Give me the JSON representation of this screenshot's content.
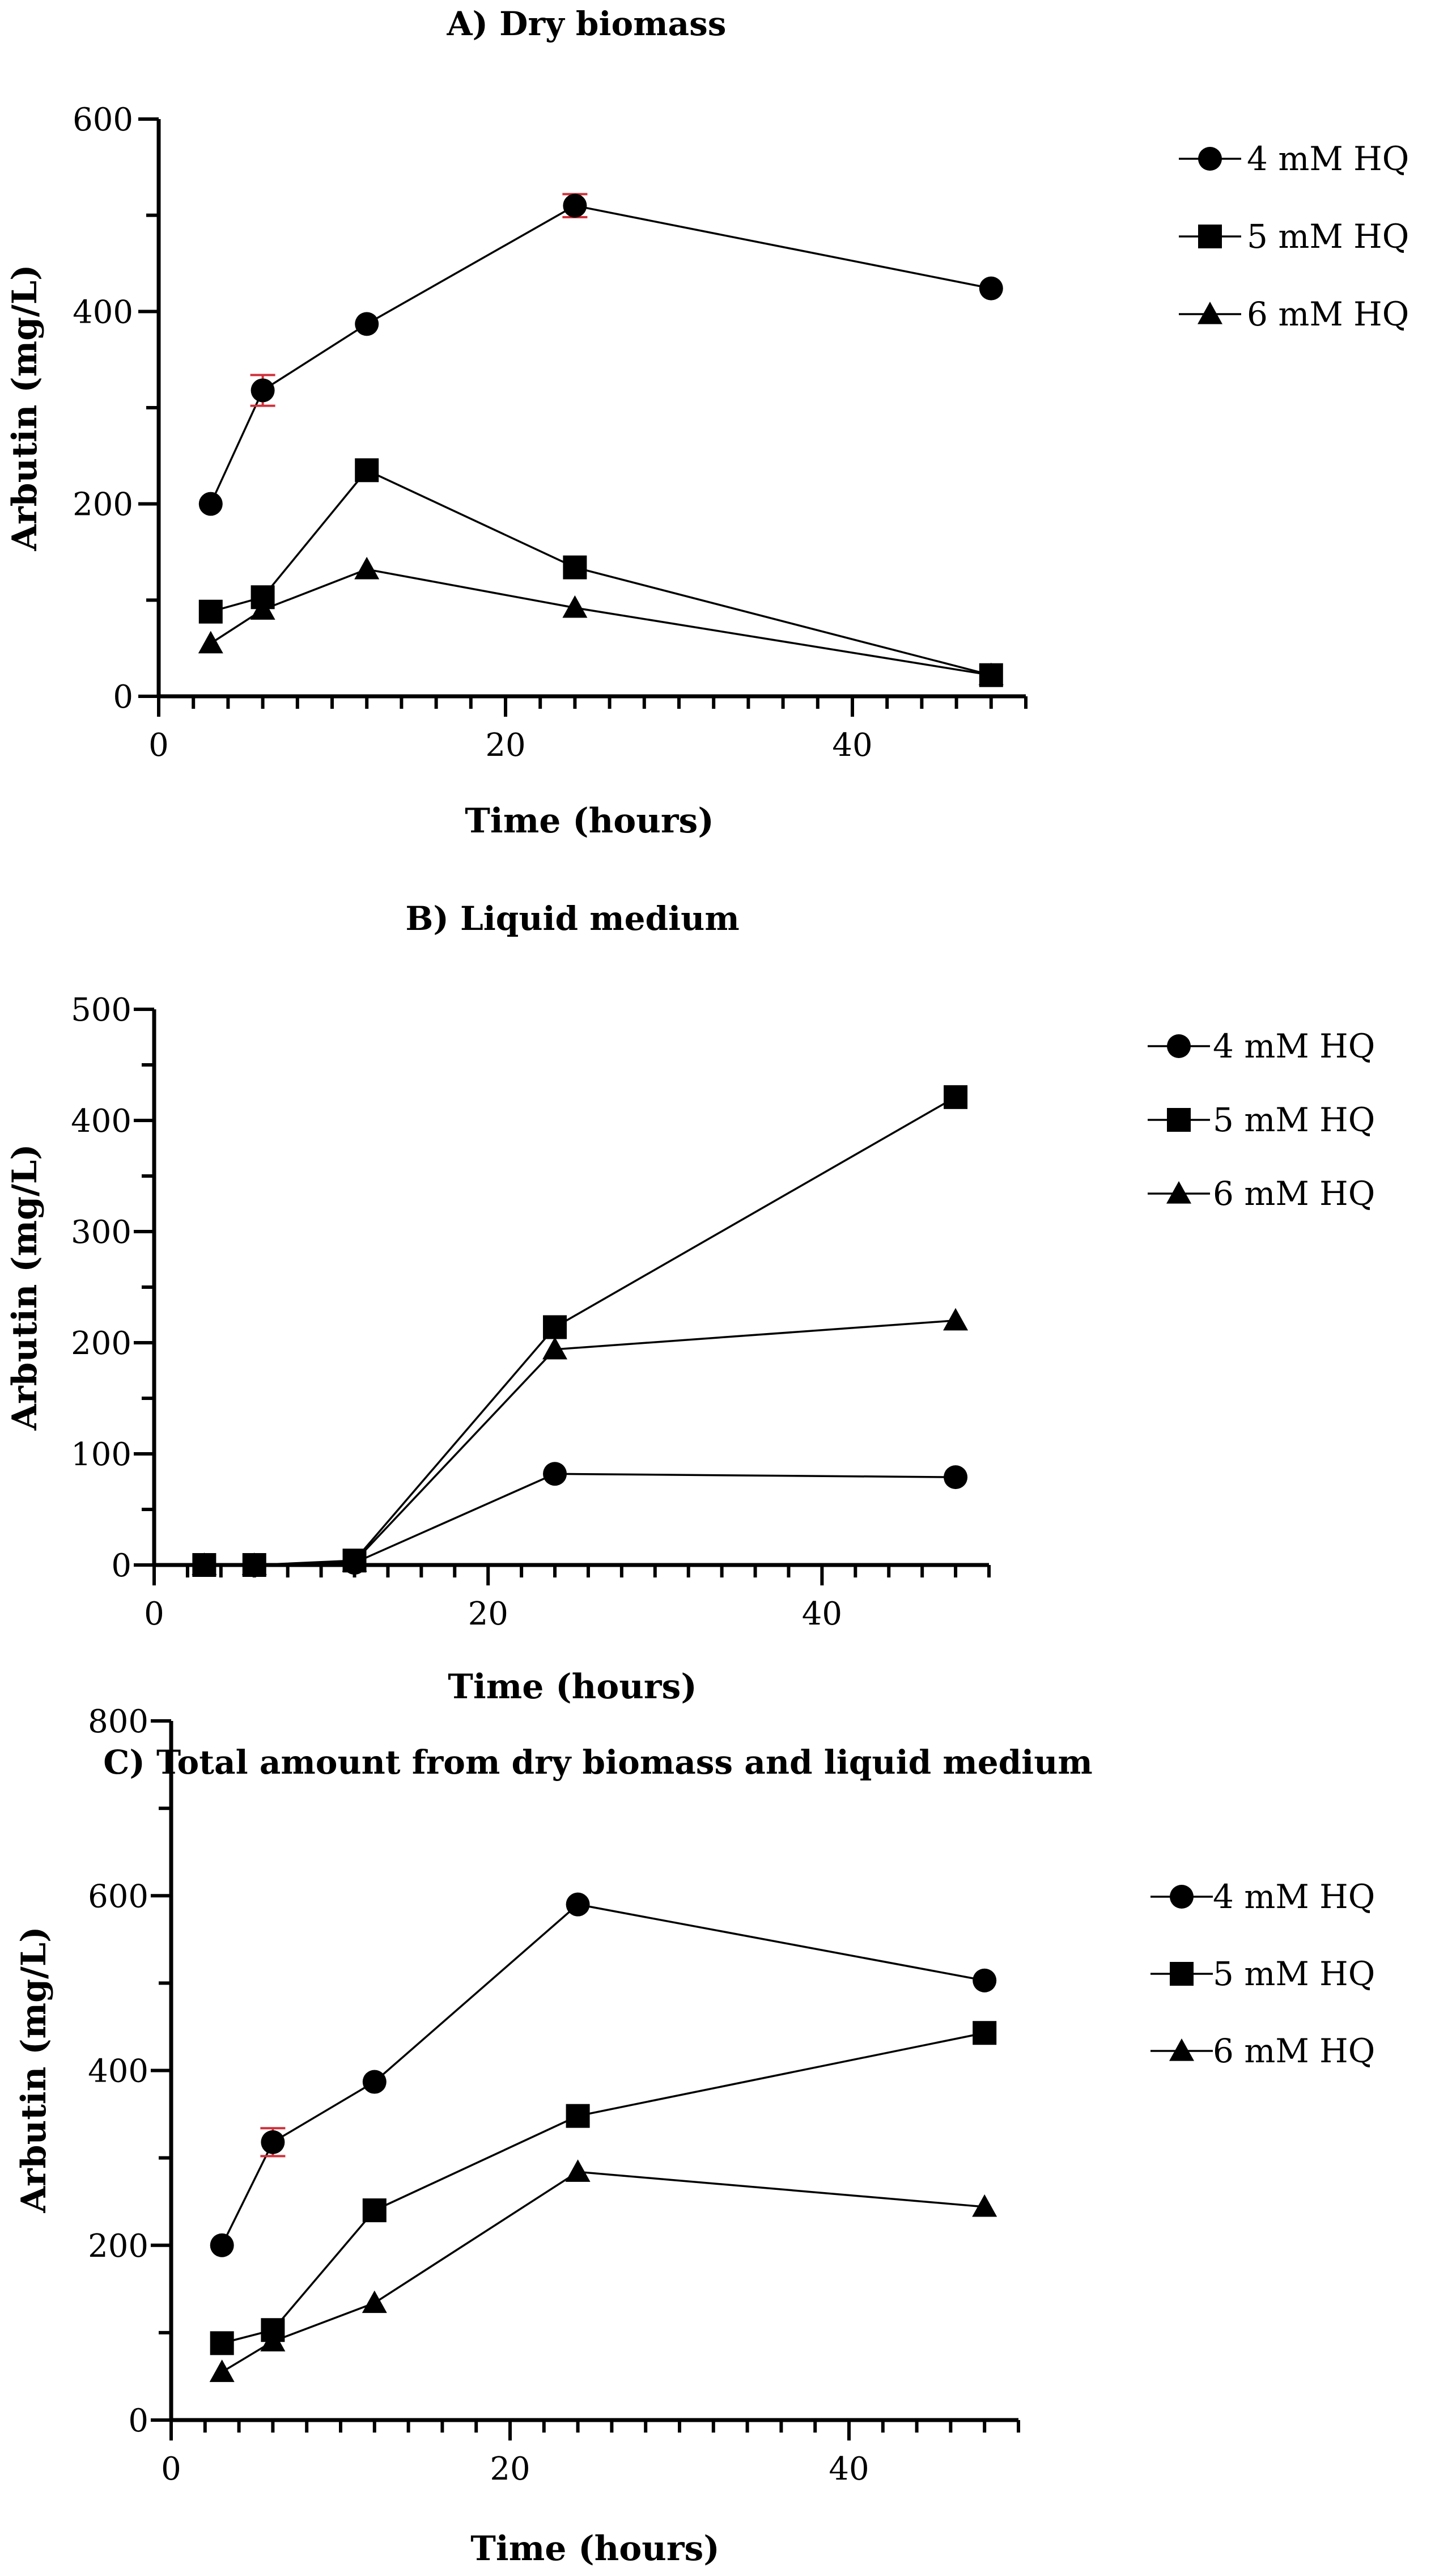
{
  "chart_data": [
    {
      "type": "line",
      "title": "A) Dry biomass",
      "xlabel": "Time (hours)",
      "ylabel": "Arbutin (mg/L)",
      "xlim": [
        0,
        50
      ],
      "ylim": [
        0,
        600
      ],
      "xticks": [
        0,
        20,
        40
      ],
      "yticks": [
        0,
        200,
        400,
        600
      ],
      "x": [
        3,
        6,
        12,
        24,
        48
      ],
      "legend_position": "right",
      "series": [
        {
          "name": "4 mM HQ",
          "marker": "circle",
          "values": [
            200,
            318,
            387,
            510,
            424
          ],
          "errors": [
            0,
            16,
            0,
            12,
            0
          ]
        },
        {
          "name": "5 mM HQ",
          "marker": "square",
          "values": [
            88,
            103,
            235,
            134,
            22
          ],
          "errors": [
            0,
            0,
            0,
            0,
            0
          ]
        },
        {
          "name": "6 mM HQ",
          "marker": "triangle",
          "values": [
            55,
            90,
            132,
            92,
            22
          ],
          "errors": [
            0,
            0,
            0,
            0,
            0
          ]
        }
      ]
    },
    {
      "type": "line",
      "title": "B) Liquid medium",
      "xlabel": "Time (hours)",
      "ylabel": "Arbutin (mg/L)",
      "xlim": [
        0,
        50
      ],
      "ylim": [
        0,
        500
      ],
      "xticks": [
        0,
        20,
        40
      ],
      "yticks": [
        0,
        100,
        200,
        300,
        400,
        500
      ],
      "x": [
        3,
        6,
        12,
        24,
        48
      ],
      "legend_position": "right",
      "series": [
        {
          "name": "4 mM HQ",
          "marker": "circle",
          "values": [
            0,
            0,
            2,
            82,
            79
          ],
          "errors": [
            0,
            0,
            0,
            0,
            0
          ]
        },
        {
          "name": "5 mM HQ",
          "marker": "square",
          "values": [
            0,
            0,
            4,
            214,
            421
          ],
          "errors": [
            0,
            0,
            0,
            0,
            0
          ]
        },
        {
          "name": "6 mM HQ",
          "marker": "triangle",
          "values": [
            0,
            0,
            3,
            194,
            220
          ],
          "errors": [
            0,
            0,
            0,
            0,
            0
          ]
        }
      ]
    },
    {
      "type": "line",
      "title": "C) Total amount from dry biomass and liquid medium",
      "xlabel": "Time (hours)",
      "ylabel": "Arbutin (mg/L)",
      "xlim": [
        0,
        50
      ],
      "ylim": [
        0,
        800
      ],
      "xticks": [
        0,
        20,
        40
      ],
      "yticks": [
        0,
        200,
        400,
        600,
        800
      ],
      "x": [
        3,
        6,
        12,
        24,
        48
      ],
      "legend_position": "right",
      "series": [
        {
          "name": "4 mM HQ",
          "marker": "circle",
          "values": [
            200,
            318,
            387,
            590,
            503
          ],
          "errors": [
            0,
            16,
            0,
            0,
            0
          ]
        },
        {
          "name": "5 mM HQ",
          "marker": "square",
          "values": [
            88,
            103,
            240,
            348,
            443
          ],
          "errors": [
            0,
            0,
            0,
            0,
            0
          ]
        },
        {
          "name": "6 mM HQ",
          "marker": "triangle",
          "values": [
            55,
            90,
            134,
            284,
            244
          ],
          "errors": [
            0,
            0,
            0,
            0,
            0
          ]
        }
      ]
    }
  ]
}
